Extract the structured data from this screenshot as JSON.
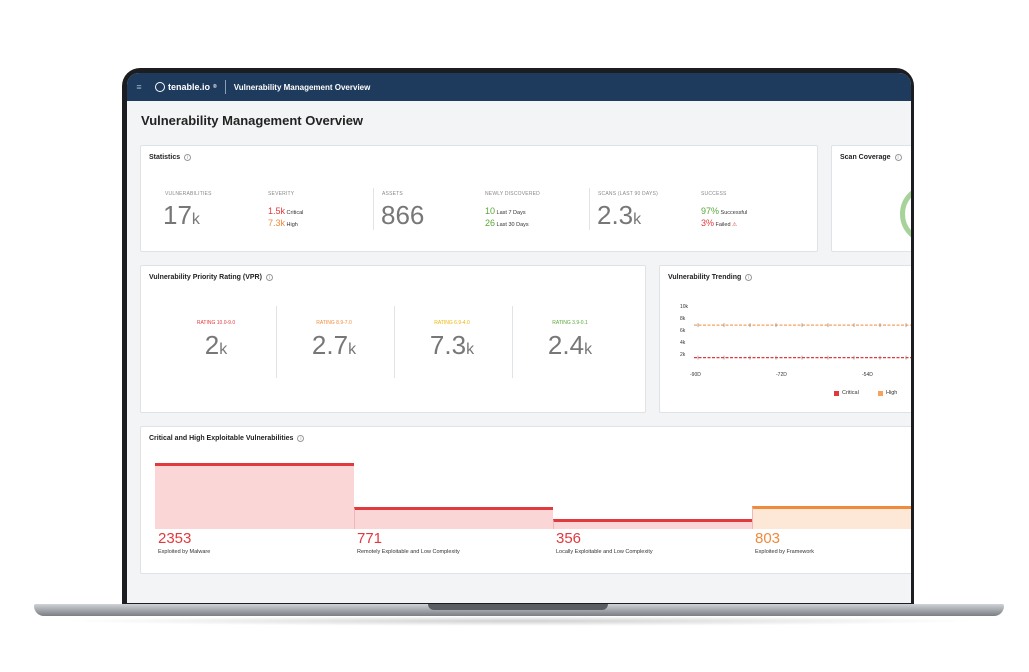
{
  "topbar": {
    "logo": "tenable.io",
    "logo_mark": "®",
    "title": "Vulnerability Management Overview"
  },
  "page": {
    "title": "Vulnerability Management Overview"
  },
  "statistics": {
    "title": "Statistics",
    "vulnerabilities": {
      "label": "VULNERABILITIES",
      "value": "17",
      "unit": "k"
    },
    "severity": {
      "label": "SEVERITY",
      "critical": {
        "value": "1.5k",
        "text": "Critical"
      },
      "high": {
        "value": "7.3k",
        "text": "High"
      }
    },
    "assets": {
      "label": "ASSETS",
      "value": "866"
    },
    "newly_discovered": {
      "label": "NEWLY DISCOVERED",
      "last7": {
        "value": "10",
        "text": "Last 7 Days"
      },
      "last30": {
        "value": "26",
        "text": "Last 30 Days"
      }
    },
    "scans": {
      "label": "SCANS (LAST 90 DAYS)",
      "value": "2.3",
      "unit": "k"
    },
    "success": {
      "label": "SUCCESS",
      "successful": {
        "value": "97%",
        "text": "Successful"
      },
      "failed": {
        "value": "3%",
        "text": "Failed"
      }
    }
  },
  "scan_coverage": {
    "title": "Scan Coverage"
  },
  "vpr": {
    "title": "Vulnerability Priority Rating (VPR)",
    "ratings": [
      {
        "label": "RATING 10.0-9.0",
        "value": "2",
        "unit": "k",
        "color": "#e0393e"
      },
      {
        "label": "RATING 8.9-7.0",
        "value": "2.7",
        "unit": "k",
        "color": "#f08a3c"
      },
      {
        "label": "RATING 6.9-4.0",
        "value": "7.3",
        "unit": "k",
        "color": "#f0b400"
      },
      {
        "label": "RATING 3.9-0.1",
        "value": "2.4",
        "unit": "k",
        "color": "#5aa83a"
      }
    ]
  },
  "trending": {
    "title": "Vulnerability Trending",
    "y_ticks": [
      "10k",
      "8k",
      "6k",
      "4k",
      "2k"
    ],
    "x_ticks": [
      "-90D",
      "-72D",
      "-54D"
    ],
    "legend": [
      {
        "name": "Critical",
        "color": "#e0393e"
      },
      {
        "name": "High",
        "color": "#f5a25d"
      }
    ]
  },
  "chart_data": {
    "type": "line",
    "x": [
      "-90D",
      "-72D",
      "-54D"
    ],
    "ylim": [
      0,
      10000
    ],
    "series": [
      {
        "name": "Critical",
        "values": [
          1500,
          1500,
          1500
        ]
      },
      {
        "name": "High",
        "values": [
          7300,
          7300,
          7300
        ]
      }
    ]
  },
  "exploitable": {
    "title": "Critical and High Exploitable Vulnerabilities",
    "items": [
      {
        "value": "2353",
        "label": "Exploited by Malware",
        "color": "#e0393e"
      },
      {
        "value": "771",
        "label": "Remotely Exploitable and Low Complexity",
        "color": "#e0393e"
      },
      {
        "value": "356",
        "label": "Locally Exploitable and Low Complexity",
        "color": "#e0393e"
      },
      {
        "value": "803",
        "label": "Exploited by Framework",
        "color": "#f08a3c"
      }
    ]
  }
}
